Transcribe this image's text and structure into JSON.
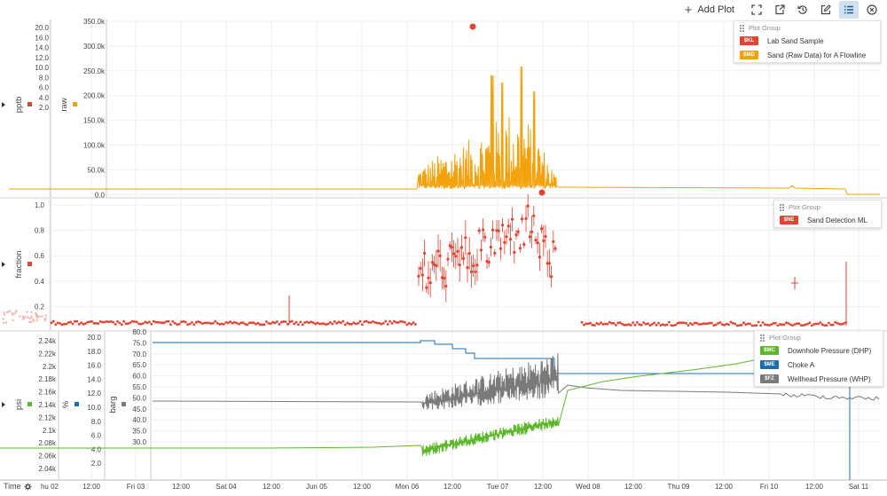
{
  "toolbar": {
    "add_plot_label": "Add Plot",
    "buttons": [
      {
        "icon": "fullscreen-icon"
      },
      {
        "icon": "export-icon"
      },
      {
        "icon": "history-icon"
      },
      {
        "icon": "edit-icon"
      },
      {
        "icon": "list-icon",
        "active": true
      },
      {
        "icon": "close-icon"
      }
    ]
  },
  "time_axis": {
    "label": "Time",
    "ticks": [
      "hu 02",
      "12:00",
      "Fri 03",
      "12:00",
      "Sat 04",
      "12:00",
      "Jun 05",
      "12:00",
      "Mon 06",
      "12:00",
      "Tue 07",
      "12:00",
      "Wed 08",
      "12:00",
      "Thu 09",
      "12:00",
      "Fri 10",
      "12:00",
      "Sat 11"
    ]
  },
  "panels": [
    {
      "legend": {
        "header": "Plot Group",
        "items": [
          {
            "code": "$KL",
            "label": "Lab Sand Sample",
            "color": "#e8412f"
          },
          {
            "code": "$MD",
            "label": "Sand (Raw Data) for A Flowline",
            "color": "#f4a20c"
          }
        ]
      },
      "axes": [
        {
          "label": "pptb",
          "color": "#e8412f",
          "ticks": [
            "20.0",
            "16.0",
            "14.0",
            "12.0",
            "10.0",
            "8.0",
            "6.0",
            "4.0",
            "2.0"
          ]
        },
        {
          "label": "raw",
          "color": "#f4a20c",
          "ticks": [
            "350.0k",
            "300.0k",
            "250.0k",
            "200.0k",
            "150.0k",
            "100.0k",
            "50.0k",
            "0.0"
          ]
        }
      ]
    },
    {
      "legend": {
        "header": "Plot Group",
        "items": [
          {
            "code": "$NE",
            "label": "Sand Detection ML",
            "color": "#e8412f"
          }
        ]
      },
      "axes": [
        {
          "label": "fraction",
          "color": "#e8412f",
          "ticks": [
            "1.0",
            "0.8",
            "0.6",
            "0.4",
            "0.2"
          ]
        }
      ]
    },
    {
      "legend": {
        "header": "Plot Group",
        "items": [
          {
            "code": "$MC",
            "label": "Downhole Pressure (DHP)",
            "color": "#5cb82a"
          },
          {
            "code": "$ME",
            "label": "Choke A",
            "color": "#1a6fb3"
          },
          {
            "code": "$FZ",
            "label": "Wellhead Pressure (WHP)",
            "color": "#7a7a7a"
          }
        ]
      },
      "axes": [
        {
          "label": "psi",
          "color": "#5cb82a",
          "ticks": [
            "2.24k",
            "2.22k",
            "2.2k",
            "2.18k",
            "2.16k",
            "2.14k",
            "2.12k",
            "2.1k",
            "2.08k",
            "2.06k",
            "2.04k"
          ]
        },
        {
          "label": "%",
          "color": "#1a6fb3",
          "ticks": [
            "20.0",
            "18.0",
            "16.0",
            "14.0",
            "12.0",
            "10.0",
            "8.0",
            "6.0",
            "4.0",
            "2.0"
          ]
        },
        {
          "label": "barg",
          "color": "#7a7a7a",
          "ticks": [
            "80.0",
            "75.0",
            "70.0",
            "65.0",
            "60.0",
            "55.0",
            "50.0",
            "45.0",
            "40.0",
            "35.0",
            "30.0"
          ]
        }
      ]
    }
  ]
}
